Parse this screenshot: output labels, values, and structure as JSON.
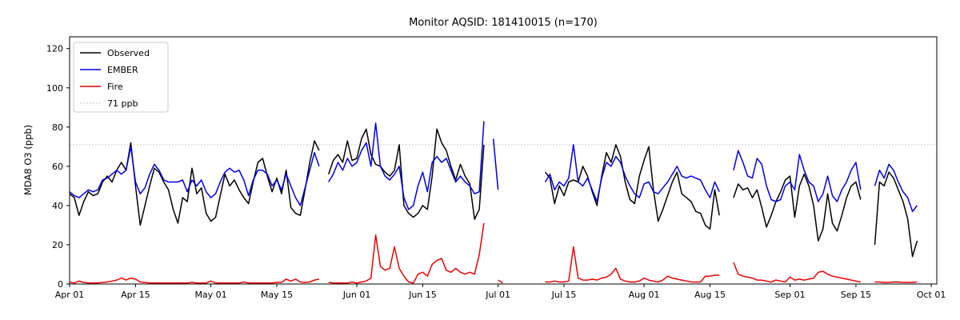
{
  "chart_data": {
    "type": "line",
    "title": "Monitor AQSID: 181410015 (n=170)",
    "xlabel": "",
    "ylabel": "MDA8 O3 (ppb)",
    "x_unit": "daily values, index 0 = Apr 01",
    "x_tick_labels": [
      "Apr 01",
      "Apr 15",
      "May 01",
      "May 15",
      "Jun 01",
      "Jun 15",
      "Jul 01",
      "Jul 15",
      "Aug 01",
      "Aug 15",
      "Sep 01",
      "Sep 15",
      "Oct 01"
    ],
    "x_tick_days": [
      0,
      14,
      30,
      44,
      61,
      75,
      91,
      105,
      122,
      136,
      153,
      167,
      183
    ],
    "y_ticks": [
      0,
      20,
      40,
      60,
      80,
      100,
      120
    ],
    "ylim": [
      0,
      126
    ],
    "xlim_days": [
      0,
      184.2
    ],
    "grid": false,
    "legend_position": "upper left",
    "threshold": {
      "label": "71 ppb",
      "value": 71,
      "color": "#c8c8c8",
      "style": "dotted"
    },
    "series": [
      {
        "name": "Observed",
        "color": "#000000",
        "values": [
          46,
          44,
          35,
          42,
          47,
          45,
          46,
          52,
          55,
          52,
          58,
          62,
          58,
          72,
          50,
          30,
          40,
          50,
          59,
          57,
          52,
          48,
          38,
          31,
          44,
          42,
          59,
          46,
          49,
          36,
          32,
          34,
          45,
          56,
          50,
          53,
          48,
          44,
          41,
          52,
          62,
          64,
          55,
          47,
          54,
          46,
          58,
          39,
          36,
          35,
          48,
          62,
          73,
          68,
          null,
          56,
          63,
          66,
          62,
          73,
          63,
          64,
          74,
          79,
          66,
          61,
          60,
          57,
          55,
          58,
          71,
          40,
          36,
          34,
          36,
          40,
          38,
          55,
          79,
          72,
          68,
          60,
          53,
          61,
          55,
          51,
          33,
          38,
          71,
          null,
          null,
          null,
          null,
          null,
          null,
          null,
          null,
          null,
          null,
          null,
          null,
          57,
          54,
          41,
          50,
          45,
          52,
          53,
          52,
          60,
          55,
          47,
          40,
          55,
          67,
          62,
          71,
          65,
          52,
          43,
          41,
          55,
          63,
          70,
          48,
          32,
          38,
          45,
          52,
          57,
          46,
          44,
          42,
          37,
          36,
          30,
          28,
          48,
          35,
          null,
          null,
          44,
          51,
          48,
          49,
          44,
          48,
          39,
          29,
          35,
          42,
          47,
          53,
          55,
          34,
          50,
          56,
          50,
          40,
          22,
          28,
          46,
          31,
          27,
          35,
          44,
          50,
          52,
          43,
          null,
          null,
          20,
          52,
          50,
          57,
          54,
          48,
          42,
          33,
          14,
          22,
          null,
          null
        ]
      },
      {
        "name": "EMBER",
        "color": "#0000ee",
        "values": [
          47,
          45,
          44,
          46,
          48,
          47,
          48,
          53,
          54,
          56,
          58,
          56,
          58,
          70,
          52,
          46,
          49,
          56,
          61,
          58,
          53,
          52,
          52,
          52,
          53,
          47,
          53,
          50,
          53,
          47,
          44,
          46,
          52,
          57,
          59,
          57,
          58,
          53,
          45,
          53,
          58,
          58,
          56,
          50,
          53,
          48,
          56,
          50,
          44,
          40,
          49,
          58,
          67,
          60,
          null,
          52,
          56,
          62,
          58,
          64,
          60,
          62,
          68,
          72,
          60,
          82,
          60,
          55,
          53,
          56,
          60,
          44,
          38,
          40,
          50,
          57,
          47,
          62,
          65,
          62,
          64,
          58,
          52,
          55,
          52,
          50,
          46,
          47,
          83,
          null,
          74,
          48,
          null,
          null,
          null,
          null,
          null,
          null,
          null,
          null,
          null,
          52,
          56,
          48,
          52,
          50,
          54,
          71,
          52,
          50,
          54,
          48,
          42,
          54,
          62,
          60,
          65,
          62,
          55,
          50,
          46,
          44,
          51,
          52,
          47,
          46,
          49,
          52,
          56,
          60,
          55,
          54,
          55,
          54,
          53,
          48,
          44,
          52,
          47,
          null,
          null,
          58,
          68,
          62,
          55,
          54,
          64,
          61,
          50,
          43,
          42,
          43,
          50,
          52,
          48,
          66,
          58,
          52,
          50,
          42,
          46,
          55,
          45,
          42,
          48,
          52,
          58,
          62,
          48,
          null,
          null,
          50,
          58,
          54,
          61,
          58,
          52,
          47,
          44,
          37,
          40,
          null,
          null
        ]
      },
      {
        "name": "Fire",
        "color": "#ee0000",
        "values": [
          1,
          0.5,
          1.5,
          0.8,
          0.5,
          0.5,
          0.5,
          0.8,
          1,
          1.5,
          2,
          3,
          2,
          3,
          2.5,
          1,
          0.8,
          0.5,
          0.5,
          0.5,
          0.5,
          0.5,
          0.5,
          0.5,
          0.5,
          0.5,
          0.8,
          0.5,
          0.5,
          0.5,
          1.5,
          0.5,
          0.5,
          0.5,
          0.5,
          0.5,
          0.5,
          1,
          0.5,
          0.5,
          0.5,
          0.5,
          0.5,
          0.5,
          0.8,
          0.8,
          2.5,
          1.5,
          2.5,
          1,
          0.8,
          1,
          2,
          2.5,
          null,
          0.8,
          0.5,
          0.5,
          0.5,
          0.5,
          1,
          0.5,
          1,
          1.5,
          3,
          25,
          9,
          7,
          8,
          19,
          8,
          4,
          1,
          0.5,
          5,
          6,
          4,
          10,
          12,
          13,
          7,
          6,
          8,
          6,
          5,
          6,
          5,
          15,
          31,
          null,
          null,
          2,
          0.5,
          null,
          null,
          null,
          null,
          null,
          null,
          null,
          null,
          1,
          1,
          1.5,
          1,
          1,
          1.5,
          19,
          3,
          2,
          2,
          2.5,
          2,
          3,
          3.5,
          5,
          8,
          2.5,
          1.5,
          1,
          1,
          1.5,
          3,
          2,
          1.5,
          1,
          2,
          4,
          3,
          2.5,
          2,
          1.5,
          1,
          1,
          1,
          4,
          4,
          4.5,
          4.5,
          null,
          null,
          11,
          5,
          4,
          3.5,
          3,
          2,
          2,
          1.5,
          1,
          2,
          1.5,
          1,
          3.5,
          2,
          2.5,
          2,
          2.5,
          3,
          6,
          6.5,
          5,
          4,
          3.5,
          3,
          2.5,
          2,
          1.5,
          1,
          null,
          null,
          1,
          1,
          0.8,
          0.8,
          1,
          1,
          0.8,
          0.8,
          0.8,
          1,
          null,
          null
        ]
      }
    ],
    "legend": {
      "entries": [
        {
          "label": "Observed",
          "color": "#000000",
          "style": "solid"
        },
        {
          "label": "EMBER",
          "color": "#0000ee",
          "style": "solid"
        },
        {
          "label": "Fire",
          "color": "#ee0000",
          "style": "solid"
        },
        {
          "label": "71 ppb",
          "color": "#c8c8c8",
          "style": "dotted"
        }
      ]
    }
  }
}
